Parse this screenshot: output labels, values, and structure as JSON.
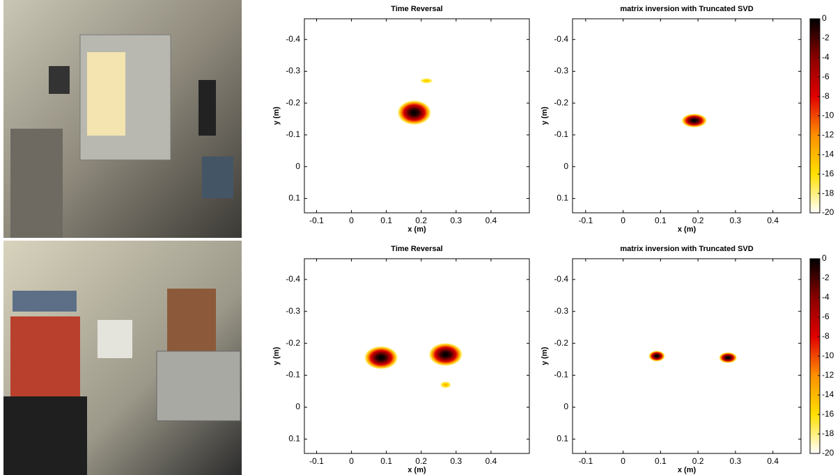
{
  "chart_data": [
    {
      "type": "heatmap",
      "title": "Time Reversal",
      "xlabel": "x (m)",
      "ylabel": "y (m)",
      "xlim": [
        -0.135,
        0.51
      ],
      "ylim": [
        0.145,
        -0.465
      ],
      "xticks": [
        -0.1,
        0,
        0.1,
        0.2,
        0.3,
        0.4
      ],
      "yticks": [
        -0.4,
        -0.3,
        -0.2,
        -0.1,
        0,
        0.1
      ],
      "blobs": [
        {
          "x": 0.18,
          "y": -0.17,
          "width": 0.1,
          "height": 0.08,
          "level": 0
        },
        {
          "x": 0.215,
          "y": -0.27,
          "width": 0.08,
          "height": 0.035,
          "level": -15
        }
      ]
    },
    {
      "type": "heatmap",
      "title": "matrix inversion with Truncated SVD",
      "xlabel": "x (m)",
      "ylabel": "y (m)",
      "xlim": [
        -0.135,
        0.475
      ],
      "ylim": [
        0.145,
        -0.465
      ],
      "xticks": [
        -0.1,
        0,
        0.1,
        0.2,
        0.3,
        0.4
      ],
      "yticks": [
        -0.4,
        -0.3,
        -0.2,
        -0.1,
        0,
        0.1
      ],
      "clim": [
        -20,
        0
      ],
      "cticks": [
        0,
        -2,
        -4,
        -6,
        -8,
        -10,
        -12,
        -14,
        -16,
        -18,
        -20
      ],
      "blobs": [
        {
          "x": 0.19,
          "y": -0.145,
          "width": 0.07,
          "height": 0.045,
          "level": 0
        }
      ]
    },
    {
      "type": "heatmap",
      "title": "Time Reversal",
      "xlabel": "x (m)",
      "ylabel": "y (m)",
      "xlim": [
        -0.135,
        0.51
      ],
      "ylim": [
        0.145,
        -0.465
      ],
      "xticks": [
        -0.1,
        0,
        0.1,
        0.2,
        0.3,
        0.4
      ],
      "yticks": [
        -0.4,
        -0.3,
        -0.2,
        -0.1,
        0,
        0.1
      ],
      "blobs": [
        {
          "x": 0.085,
          "y": -0.155,
          "width": 0.1,
          "height": 0.075,
          "level": 0
        },
        {
          "x": 0.27,
          "y": -0.165,
          "width": 0.1,
          "height": 0.075,
          "level": 0
        },
        {
          "x": 0.27,
          "y": -0.07,
          "width": 0.06,
          "height": 0.04,
          "level": -14
        }
      ]
    },
    {
      "type": "heatmap",
      "title": "matrix inversion with Truncated SVD",
      "xlabel": "x (m)",
      "ylabel": "y (m)",
      "xlim": [
        -0.135,
        0.475
      ],
      "ylim": [
        0.145,
        -0.465
      ],
      "xticks": [
        -0.1,
        0,
        0.1,
        0.2,
        0.3,
        0.4
      ],
      "yticks": [
        -0.4,
        -0.3,
        -0.2,
        -0.1,
        0,
        0.1
      ],
      "clim": [
        -20,
        0
      ],
      "cticks": [
        0,
        -2,
        -4,
        -6,
        -8,
        -10,
        -12,
        -14,
        -16,
        -18,
        -20
      ],
      "blobs": [
        {
          "x": 0.09,
          "y": -0.16,
          "width": 0.045,
          "height": 0.035,
          "level": 0
        },
        {
          "x": 0.28,
          "y": -0.155,
          "width": 0.05,
          "height": 0.035,
          "level": 0
        }
      ]
    }
  ]
}
